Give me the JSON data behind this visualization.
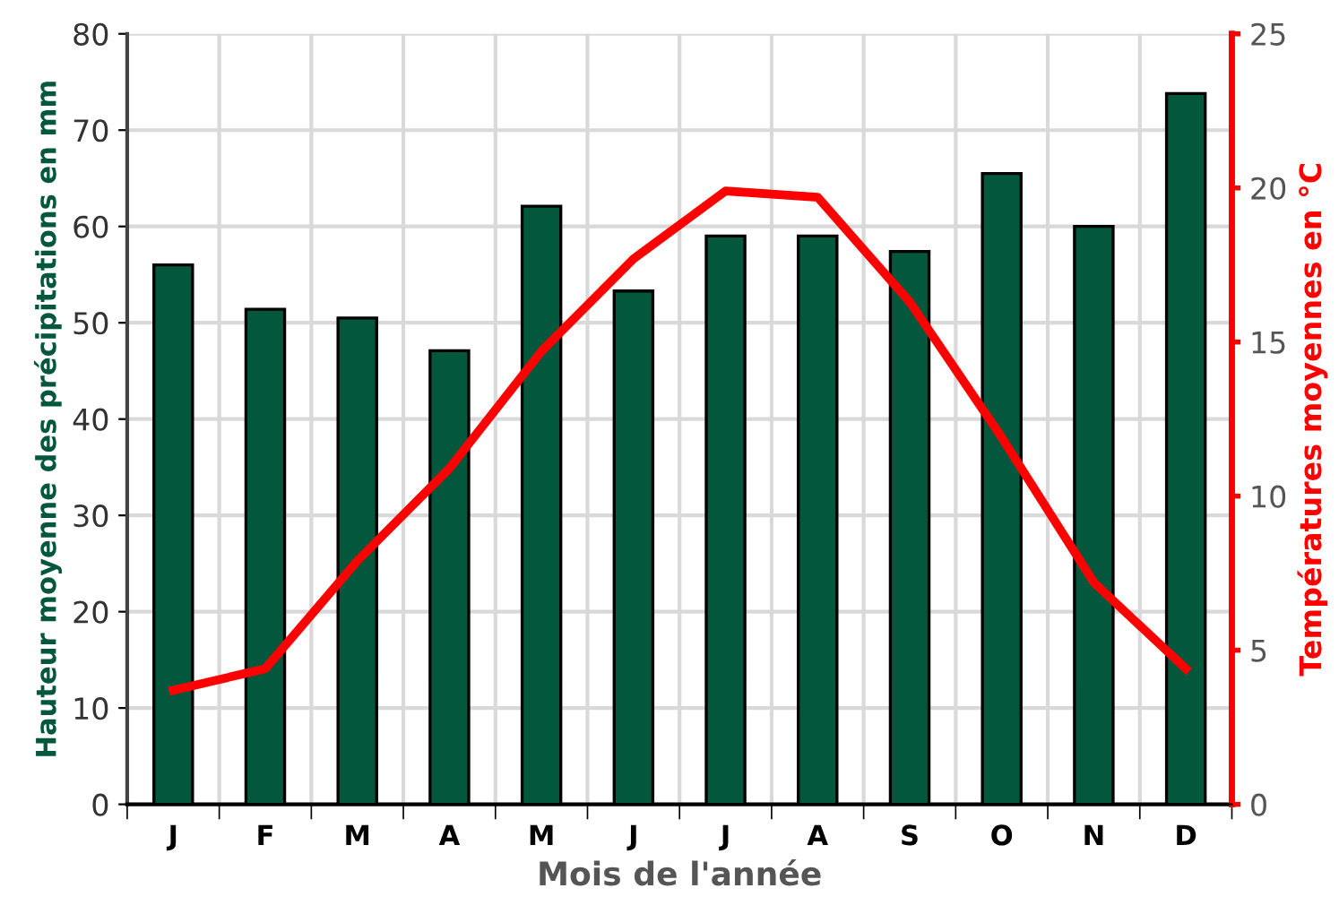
{
  "chart_data": {
    "type": "bar",
    "xlabel": "Mois de l'année",
    "ylabel": "Hauteur moyenne des précipitations en mm",
    "y2label": "Températures moyennes en °C",
    "categories": [
      "J",
      "F",
      "M",
      "A",
      "M",
      "J",
      "J",
      "A",
      "S",
      "O",
      "N",
      "D"
    ],
    "series": [
      {
        "color": "#03573c",
        "values": [
          56,
          51.4,
          50.5,
          47.1,
          62.1,
          53.3,
          59,
          59,
          57.4,
          65.5,
          60,
          73.8
        ]
      },
      {
        "type": "line",
        "axis": "y2",
        "color": "#ff0000",
        "values": [
          3.7,
          4.4,
          7.9,
          10.9,
          14.7,
          17.7,
          19.9,
          19.7,
          16.3,
          11.9,
          7.2,
          4.4
        ]
      }
    ],
    "ylim": [
      0,
      80
    ],
    "yticks": [
      0,
      10,
      20,
      30,
      40,
      50,
      60,
      70,
      80
    ],
    "y2lim": [
      0,
      25
    ],
    "y2ticks": [
      0,
      5,
      10,
      15,
      20,
      25
    ],
    "grid": true,
    "legend": false,
    "marker": "none",
    "line_style": "solid"
  }
}
